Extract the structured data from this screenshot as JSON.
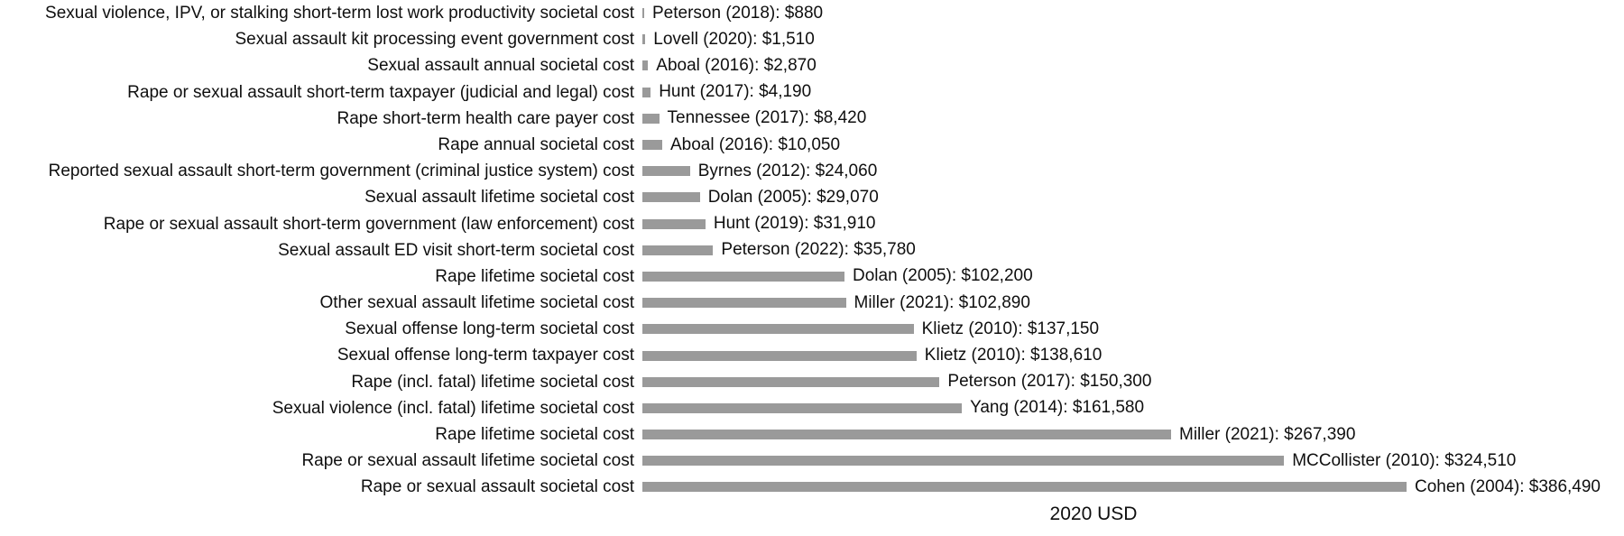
{
  "chart_data": {
    "type": "bar",
    "orientation": "horizontal",
    "title": "",
    "xlabel": "2020 USD",
    "ylabel": "",
    "xlim": [
      0,
      386490
    ],
    "grid": false,
    "legend": false,
    "bar_color": "#9A9A9A",
    "text_color": "#0f0f0f",
    "categories": [
      "Sexual violence, IPV, or stalking short-term lost work productivity societal cost",
      "Sexual assault kit processing event government cost",
      "Sexual assault annual societal cost",
      "Rape or sexual assault short-term taxpayer (judicial and legal) cost",
      "Rape short-term health care payer cost",
      "Rape annual societal cost",
      "Reported sexual assault short-term government (criminal justice system) cost",
      "Sexual assault lifetime societal cost",
      "Rape or sexual assault short-term government (law enforcement) cost",
      "Sexual assault ED visit short-term societal cost",
      "Rape lifetime societal cost",
      "Other sexual assault lifetime societal cost",
      "Sexual offense long-term societal cost",
      "Sexual offense long-term taxpayer cost",
      "Rape (incl. fatal) lifetime societal cost",
      "Sexual violence (incl. fatal) lifetime societal cost",
      "Rape lifetime societal cost",
      "Rape or sexual assault lifetime societal cost",
      "Rape or sexual assault societal cost"
    ],
    "values": [
      880,
      1510,
      2870,
      4190,
      8420,
      10050,
      24060,
      29070,
      31910,
      35780,
      102200,
      102890,
      137150,
      138610,
      150300,
      161580,
      267390,
      324510,
      386490
    ],
    "data_labels": [
      "Peterson (2018): $880",
      "Lovell (2020): $1,510",
      "Aboal (2016): $2,870",
      "Hunt (2017): $4,190",
      "Tennessee (2017): $8,420",
      "Aboal (2016): $10,050",
      "Byrnes (2012): $24,060",
      "Dolan (2005): $29,070",
      "Hunt (2019): $31,910",
      "Peterson (2022): $35,780",
      "Dolan (2005): $102,200",
      "Miller (2021): $102,890",
      "Klietz (2010): $137,150",
      "Klietz (2010): $138,610",
      "Peterson (2017): $150,300",
      "Yang (2014): $161,580",
      "Miller (2021): $267,390",
      "MCCollister (2010): $324,510",
      "Cohen (2004): $386,490"
    ]
  }
}
